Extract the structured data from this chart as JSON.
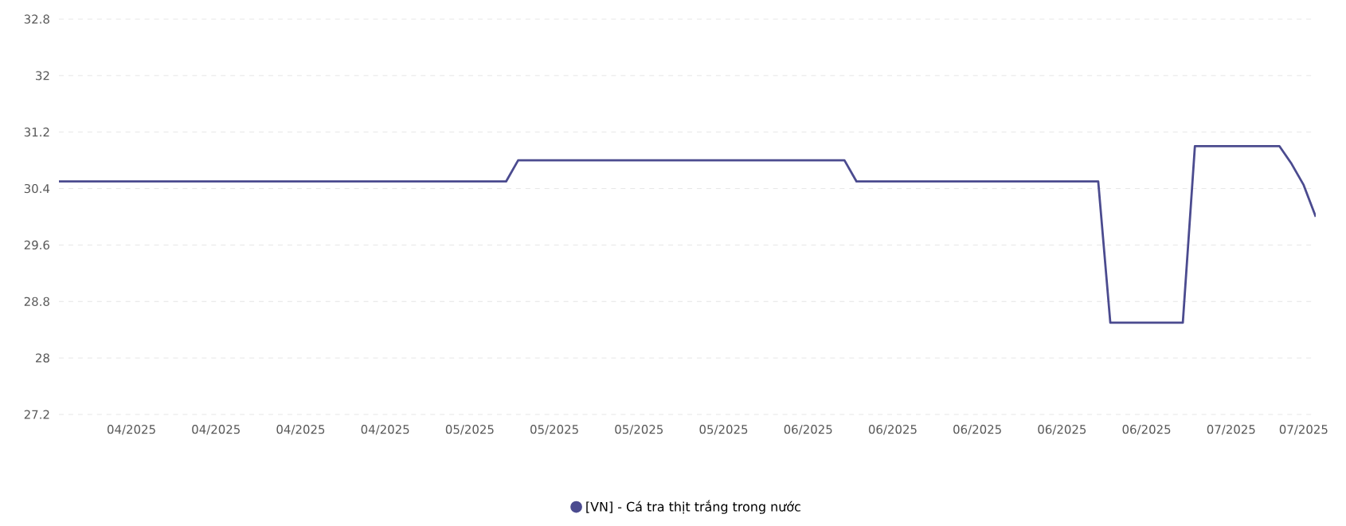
{
  "chart_data": {
    "type": "line",
    "categories": [
      null,
      null,
      null,
      null,
      null,
      null,
      "04/2025",
      null,
      null,
      null,
      null,
      null,
      null,
      "04/2025",
      null,
      null,
      null,
      null,
      null,
      null,
      "04/2025",
      null,
      null,
      null,
      null,
      null,
      null,
      "04/2025",
      null,
      null,
      null,
      null,
      null,
      null,
      "05/2025",
      null,
      null,
      null,
      null,
      null,
      null,
      "05/2025",
      null,
      null,
      null,
      null,
      null,
      null,
      "05/2025",
      null,
      null,
      null,
      null,
      null,
      null,
      "05/2025",
      null,
      null,
      null,
      null,
      null,
      null,
      "06/2025",
      null,
      null,
      null,
      null,
      null,
      null,
      "06/2025",
      null,
      null,
      null,
      null,
      null,
      null,
      "06/2025",
      null,
      null,
      null,
      null,
      null,
      null,
      "06/2025",
      null,
      null,
      null,
      null,
      null,
      null,
      "06/2025",
      null,
      null,
      null,
      null,
      null,
      null,
      "07/2025",
      null,
      null,
      null,
      null,
      null,
      "07/2025",
      null
    ],
    "series": [
      {
        "name": "[VN] - Cá tra thịt trắng trong nước",
        "color": "#4b4b8f",
        "values": [
          30.5,
          30.5,
          30.5,
          30.5,
          30.5,
          30.5,
          30.5,
          30.5,
          30.5,
          30.5,
          30.5,
          30.5,
          30.5,
          30.5,
          30.5,
          30.5,
          30.5,
          30.5,
          30.5,
          30.5,
          30.5,
          30.5,
          30.5,
          30.5,
          30.5,
          30.5,
          30.5,
          30.5,
          30.5,
          30.5,
          30.5,
          30.5,
          30.5,
          30.5,
          30.5,
          30.5,
          30.5,
          30.5,
          30.8,
          30.8,
          30.8,
          30.8,
          30.8,
          30.8,
          30.8,
          30.8,
          30.8,
          30.8,
          30.8,
          30.8,
          30.8,
          30.8,
          30.8,
          30.8,
          30.8,
          30.8,
          30.8,
          30.8,
          30.8,
          30.8,
          30.8,
          30.8,
          30.8,
          30.8,
          30.8,
          30.8,
          30.5,
          30.5,
          30.5,
          30.5,
          30.5,
          30.5,
          30.5,
          30.5,
          30.5,
          30.5,
          30.5,
          30.5,
          30.5,
          30.5,
          30.5,
          30.5,
          30.5,
          30.5,
          30.5,
          30.5,
          30.5,
          28.5,
          28.5,
          28.5,
          28.5,
          28.5,
          28.5,
          28.5,
          31.0,
          31.0,
          31.0,
          31.0,
          31.0,
          31.0,
          31.0,
          31.0,
          30.75,
          30.45,
          30.0
        ]
      }
    ],
    "ylim": [
      27.2,
      32.8
    ],
    "yticks": [
      27.2,
      28,
      28.8,
      29.6,
      30.4,
      31.2,
      32,
      32.8
    ],
    "grid": "y",
    "legend": "bottom",
    "marker": "none",
    "line_style": "solid"
  }
}
